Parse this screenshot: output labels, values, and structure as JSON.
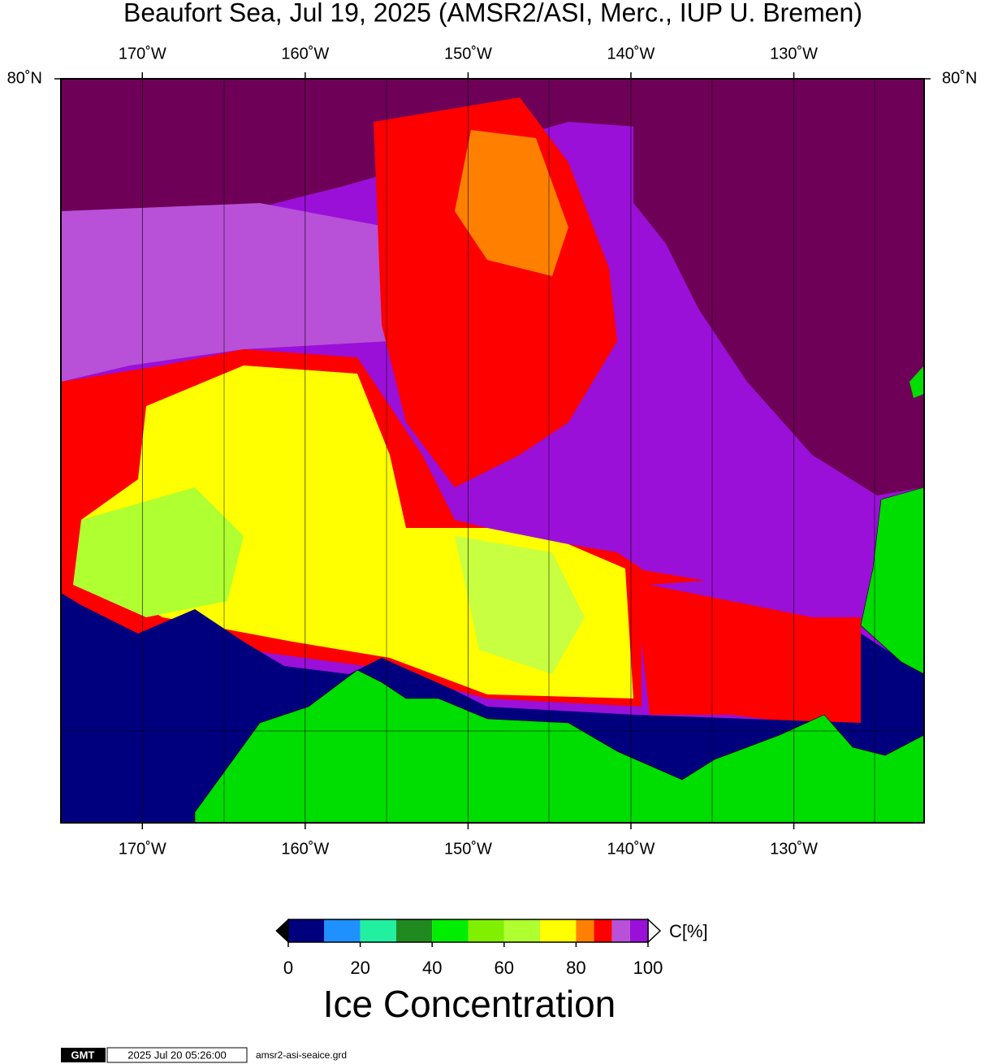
{
  "header": {
    "title": "Beaufort Sea, Jul 19, 2025 (AMSR2/ASI, Merc., IUP U. Bremen)"
  },
  "map": {
    "xlim": [
      -175,
      -122
    ],
    "xticks": [
      {
        "value": -170,
        "label": "170˚W"
      },
      {
        "value": -160,
        "label": "160˚W"
      },
      {
        "value": -150,
        "label": "150˚W"
      },
      {
        "value": -140,
        "label": "140˚W"
      },
      {
        "value": -130,
        "label": "130˚W"
      }
    ],
    "yticks": [
      {
        "value": 80,
        "label": "80˚N"
      }
    ]
  },
  "colorbar": {
    "bounds": [
      0,
      10,
      20,
      30,
      40,
      50,
      60,
      70,
      80,
      85,
      90,
      95,
      100
    ],
    "colors": [
      "#00007f",
      "#1e90ff",
      "#20f0a0",
      "#208a20",
      "#00ee00",
      "#80f000",
      "#b0ff30",
      "#ffff00",
      "#ff8000",
      "#ff0000",
      "#b850d8",
      "#9a10d8"
    ],
    "ticks": [
      0,
      20,
      40,
      60,
      80,
      100
    ],
    "unit": "C[%]",
    "title": "Ice Concentration"
  },
  "footer": {
    "logo": "GMT",
    "timestamp": "2025 Jul 20 05:26:00",
    "file": "amsr2-asi-seaice.grd"
  }
}
